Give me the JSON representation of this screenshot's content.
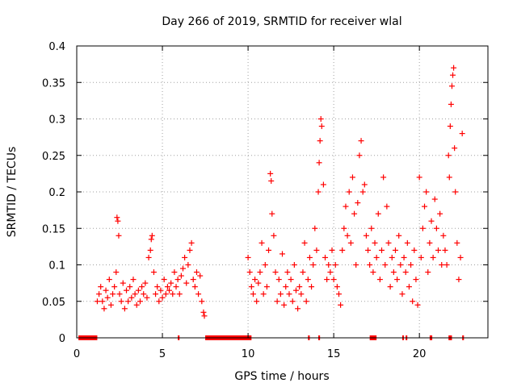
{
  "chart_data": {
    "type": "scatter",
    "title": "Day 266 of 2019, SRMTID for receiver wlal",
    "xlabel": "GPS time / hours",
    "ylabel": "SRMTID / TECUs",
    "xlim": [
      0,
      24
    ],
    "ylim": [
      0,
      0.4
    ],
    "xticks": [
      0,
      5,
      10,
      15,
      20
    ],
    "xtick_labels": [
      "0",
      "5",
      "10",
      "15",
      "20"
    ],
    "yticks": [
      0,
      0.05,
      0.1,
      0.15,
      0.2,
      0.25,
      0.3,
      0.35,
      0.4
    ],
    "ytick_labels": [
      "0",
      "0.05",
      "0.1",
      "0.15",
      "0.2",
      "0.25",
      "0.3",
      "0.35",
      "0.4"
    ],
    "grid": true,
    "marker": "+",
    "color": "#ff0000",
    "series": [
      {
        "name": "SRMTID",
        "points": [
          [
            1.2,
            0.05
          ],
          [
            1.3,
            0.06
          ],
          [
            1.4,
            0.07
          ],
          [
            1.5,
            0.05
          ],
          [
            1.6,
            0.04
          ],
          [
            1.7,
            0.065
          ],
          [
            1.8,
            0.055
          ],
          [
            1.9,
            0.08
          ],
          [
            2.0,
            0.045
          ],
          [
            2.1,
            0.06
          ],
          [
            2.2,
            0.07
          ],
          [
            2.3,
            0.09
          ],
          [
            2.35,
            0.165
          ],
          [
            2.4,
            0.16
          ],
          [
            2.45,
            0.14
          ],
          [
            2.5,
            0.06
          ],
          [
            2.6,
            0.05
          ],
          [
            2.7,
            0.075
          ],
          [
            2.8,
            0.04
          ],
          [
            2.9,
            0.065
          ],
          [
            3.0,
            0.05
          ],
          [
            3.1,
            0.07
          ],
          [
            3.2,
            0.055
          ],
          [
            3.3,
            0.08
          ],
          [
            3.4,
            0.06
          ],
          [
            3.5,
            0.045
          ],
          [
            3.6,
            0.065
          ],
          [
            3.7,
            0.05
          ],
          [
            3.8,
            0.07
          ],
          [
            3.9,
            0.06
          ],
          [
            4.0,
            0.075
          ],
          [
            4.1,
            0.055
          ],
          [
            4.2,
            0.11
          ],
          [
            4.3,
            0.12
          ],
          [
            4.35,
            0.135
          ],
          [
            4.4,
            0.14
          ],
          [
            4.5,
            0.09
          ],
          [
            4.6,
            0.06
          ],
          [
            4.7,
            0.07
          ],
          [
            4.8,
            0.05
          ],
          [
            4.9,
            0.065
          ],
          [
            5.0,
            0.055
          ],
          [
            5.1,
            0.08
          ],
          [
            5.2,
            0.06
          ],
          [
            5.3,
            0.07
          ],
          [
            5.4,
            0.065
          ],
          [
            5.5,
            0.075
          ],
          [
            5.6,
            0.06
          ],
          [
            5.7,
            0.09
          ],
          [
            5.8,
            0.07
          ],
          [
            5.9,
            0.08
          ],
          [
            6.0,
            0.06
          ],
          [
            6.1,
            0.085
          ],
          [
            6.2,
            0.095
          ],
          [
            6.3,
            0.11
          ],
          [
            6.4,
            0.075
          ],
          [
            6.5,
            0.1
          ],
          [
            6.6,
            0.12
          ],
          [
            6.7,
            0.13
          ],
          [
            6.8,
            0.08
          ],
          [
            6.9,
            0.07
          ],
          [
            7.0,
            0.09
          ],
          [
            7.1,
            0.06
          ],
          [
            7.2,
            0.085
          ],
          [
            7.3,
            0.05
          ],
          [
            7.4,
            0.035
          ],
          [
            7.45,
            0.03
          ],
          [
            10.0,
            0.11
          ],
          [
            10.1,
            0.09
          ],
          [
            10.2,
            0.07
          ],
          [
            10.3,
            0.06
          ],
          [
            10.4,
            0.08
          ],
          [
            10.5,
            0.05
          ],
          [
            10.6,
            0.075
          ],
          [
            10.7,
            0.09
          ],
          [
            10.8,
            0.13
          ],
          [
            10.9,
            0.06
          ],
          [
            11.0,
            0.1
          ],
          [
            11.1,
            0.07
          ],
          [
            11.2,
            0.12
          ],
          [
            11.3,
            0.225
          ],
          [
            11.35,
            0.215
          ],
          [
            11.4,
            0.17
          ],
          [
            11.5,
            0.14
          ],
          [
            11.6,
            0.09
          ],
          [
            11.7,
            0.05
          ],
          [
            11.8,
            0.08
          ],
          [
            11.9,
            0.06
          ],
          [
            12.0,
            0.115
          ],
          [
            12.1,
            0.045
          ],
          [
            12.2,
            0.07
          ],
          [
            12.3,
            0.09
          ],
          [
            12.4,
            0.06
          ],
          [
            12.5,
            0.08
          ],
          [
            12.6,
            0.05
          ],
          [
            12.7,
            0.1
          ],
          [
            12.8,
            0.065
          ],
          [
            12.9,
            0.04
          ],
          [
            13.0,
            0.07
          ],
          [
            13.1,
            0.06
          ],
          [
            13.2,
            0.09
          ],
          [
            13.3,
            0.13
          ],
          [
            13.4,
            0.05
          ],
          [
            13.5,
            0.08
          ],
          [
            13.6,
            0.11
          ],
          [
            13.7,
            0.07
          ],
          [
            13.8,
            0.1
          ],
          [
            13.9,
            0.15
          ],
          [
            14.0,
            0.12
          ],
          [
            14.1,
            0.2
          ],
          [
            14.15,
            0.24
          ],
          [
            14.2,
            0.27
          ],
          [
            14.25,
            0.3
          ],
          [
            14.3,
            0.29
          ],
          [
            14.4,
            0.21
          ],
          [
            14.5,
            0.11
          ],
          [
            14.6,
            0.08
          ],
          [
            14.7,
            0.1
          ],
          [
            14.8,
            0.09
          ],
          [
            14.9,
            0.12
          ],
          [
            15.0,
            0.08
          ],
          [
            15.1,
            0.1
          ],
          [
            15.2,
            0.07
          ],
          [
            15.3,
            0.06
          ],
          [
            15.4,
            0.045
          ],
          [
            15.5,
            0.12
          ],
          [
            15.6,
            0.15
          ],
          [
            15.7,
            0.18
          ],
          [
            15.8,
            0.14
          ],
          [
            15.9,
            0.2
          ],
          [
            16.0,
            0.13
          ],
          [
            16.1,
            0.22
          ],
          [
            16.2,
            0.17
          ],
          [
            16.3,
            0.1
          ],
          [
            16.4,
            0.185
          ],
          [
            16.5,
            0.25
          ],
          [
            16.6,
            0.27
          ],
          [
            16.7,
            0.2
          ],
          [
            16.8,
            0.21
          ],
          [
            16.9,
            0.14
          ],
          [
            17.0,
            0.12
          ],
          [
            17.1,
            0.1
          ],
          [
            17.2,
            0.15
          ],
          [
            17.3,
            0.09
          ],
          [
            17.4,
            0.13
          ],
          [
            17.5,
            0.11
          ],
          [
            17.6,
            0.17
          ],
          [
            17.7,
            0.08
          ],
          [
            17.8,
            0.12
          ],
          [
            17.9,
            0.22
          ],
          [
            18.0,
            0.1
          ],
          [
            18.1,
            0.18
          ],
          [
            18.2,
            0.13
          ],
          [
            18.3,
            0.07
          ],
          [
            18.4,
            0.11
          ],
          [
            18.5,
            0.09
          ],
          [
            18.6,
            0.12
          ],
          [
            18.7,
            0.08
          ],
          [
            18.8,
            0.14
          ],
          [
            18.9,
            0.1
          ],
          [
            19.0,
            0.06
          ],
          [
            19.1,
            0.11
          ],
          [
            19.2,
            0.09
          ],
          [
            19.3,
            0.13
          ],
          [
            19.4,
            0.07
          ],
          [
            19.5,
            0.1
          ],
          [
            19.6,
            0.05
          ],
          [
            19.7,
            0.12
          ],
          [
            19.8,
            0.08
          ],
          [
            19.9,
            0.045
          ],
          [
            20.0,
            0.22
          ],
          [
            20.1,
            0.11
          ],
          [
            20.2,
            0.15
          ],
          [
            20.3,
            0.18
          ],
          [
            20.4,
            0.2
          ],
          [
            20.5,
            0.09
          ],
          [
            20.6,
            0.13
          ],
          [
            20.7,
            0.16
          ],
          [
            20.8,
            0.11
          ],
          [
            20.9,
            0.19
          ],
          [
            21.0,
            0.15
          ],
          [
            21.1,
            0.12
          ],
          [
            21.2,
            0.17
          ],
          [
            21.3,
            0.1
          ],
          [
            21.4,
            0.14
          ],
          [
            21.5,
            0.12
          ],
          [
            21.6,
            0.1
          ],
          [
            21.7,
            0.25
          ],
          [
            21.75,
            0.22
          ],
          [
            21.8,
            0.29
          ],
          [
            21.85,
            0.32
          ],
          [
            21.9,
            0.345
          ],
          [
            21.95,
            0.36
          ],
          [
            22.0,
            0.37
          ],
          [
            22.05,
            0.26
          ],
          [
            22.1,
            0.2
          ],
          [
            22.2,
            0.13
          ],
          [
            22.3,
            0.08
          ],
          [
            22.4,
            0.11
          ],
          [
            22.5,
            0.28
          ]
        ],
        "zero_value_intervals": [
          [
            0.1,
            1.2
          ],
          [
            5.9,
            6.0
          ],
          [
            7.5,
            10.2
          ],
          [
            13.5,
            13.6
          ],
          [
            14.1,
            14.2
          ],
          [
            17.1,
            17.5
          ],
          [
            19.0,
            19.05
          ],
          [
            19.2,
            19.25
          ],
          [
            20.6,
            20.75
          ],
          [
            21.7,
            21.9
          ],
          [
            22.5,
            22.6
          ]
        ]
      }
    ]
  }
}
